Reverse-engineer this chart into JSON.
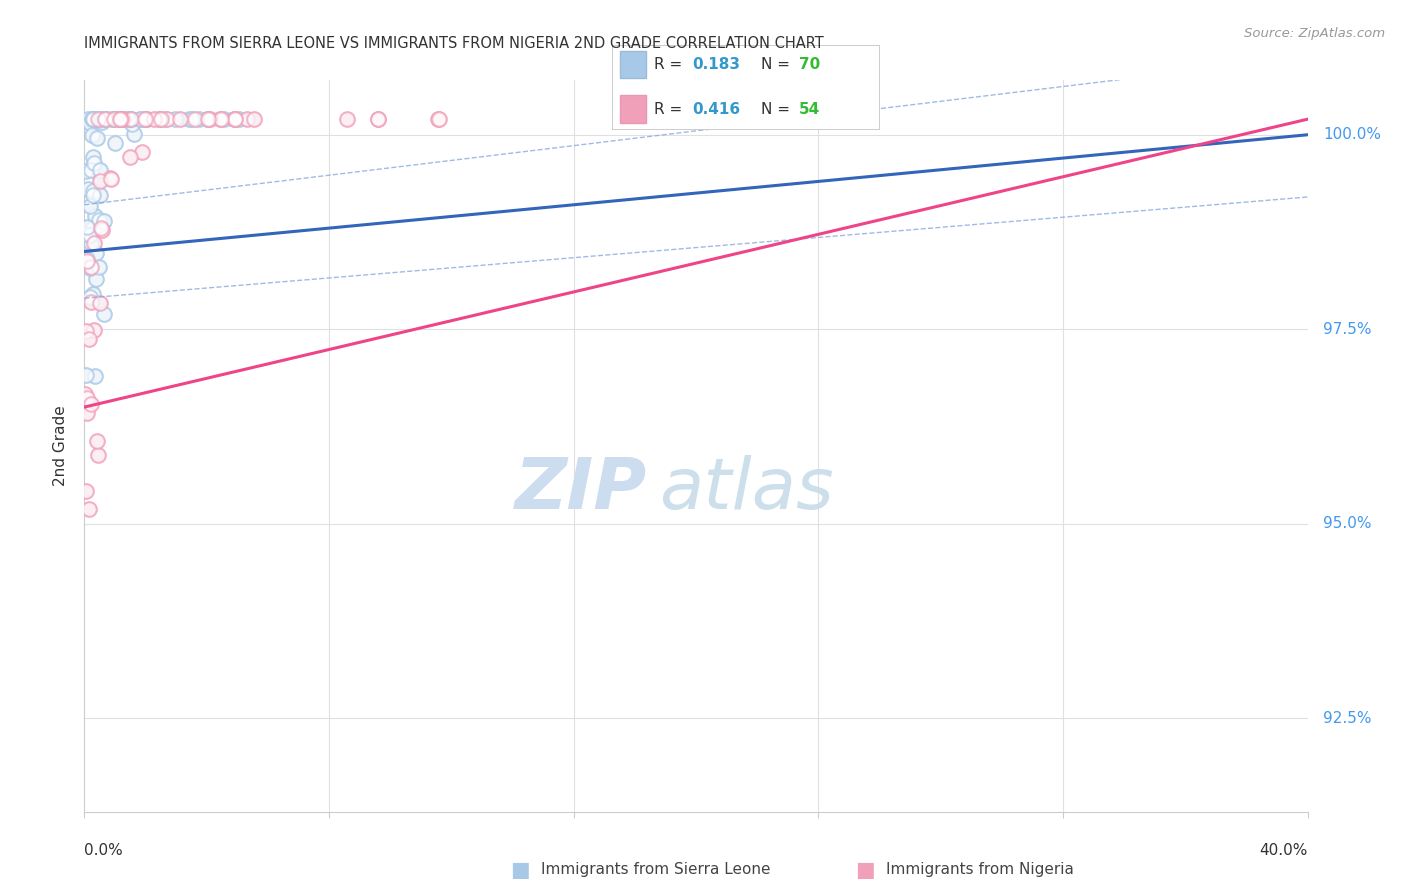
{
  "title": "IMMIGRANTS FROM SIERRA LEONE VS IMMIGRANTS FROM NIGERIA 2ND GRADE CORRELATION CHART",
  "source": "Source: ZipAtlas.com",
  "ylabel": "2nd Grade",
  "ytick_labels": [
    "100.0%",
    "97.5%",
    "95.0%",
    "92.5%"
  ],
  "ytick_values": [
    1.0,
    0.975,
    0.95,
    0.925
  ],
  "xlim": [
    0.0,
    0.4
  ],
  "ylim": [
    0.913,
    1.007
  ],
  "legend_r1": "0.183",
  "legend_n1": "70",
  "legend_r2": "0.416",
  "legend_n2": "54",
  "blue_color": "#a8c8e8",
  "pink_color": "#f0a0b8",
  "blue_line_color": "#3366bb",
  "pink_line_color": "#ee4488",
  "blue_dash_color": "#88aadd",
  "text_color_r": "#3399cc",
  "text_color_n": "#33bb33",
  "watermark_zip_color": "#ccddf0",
  "watermark_atlas_color": "#c8dce8",
  "grid_color": "#e0e0e0",
  "axis_color": "#cccccc",
  "right_label_color": "#4499ee",
  "title_color": "#333333",
  "source_color": "#999999"
}
